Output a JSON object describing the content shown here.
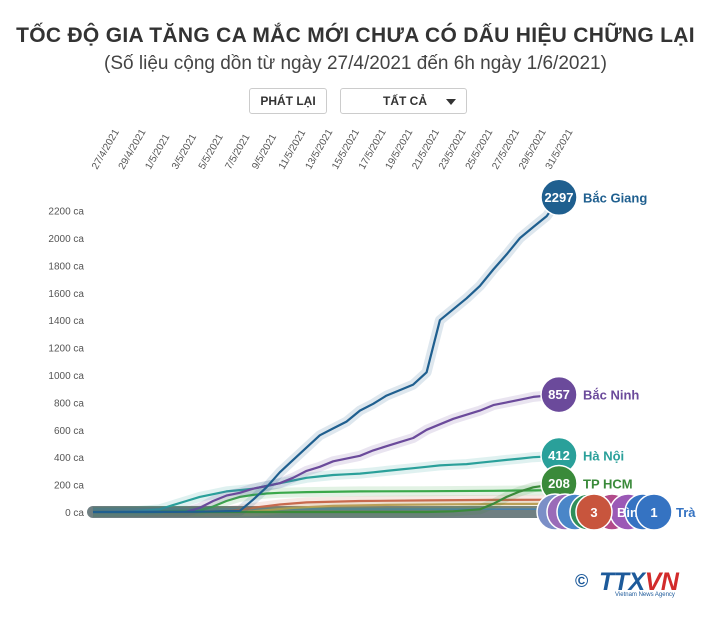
{
  "header": {
    "title": "TỐC ĐỘ GIA TĂNG CA MẮC MỚI CHƯA CÓ DẤU HIỆU CHỮNG LẠI",
    "subtitle": "(Số liệu cộng dồn từ ngày 27/4/2021 đến 6h ngày 1/6/2021)"
  },
  "controls": {
    "replay_label": "PHÁT LẠI",
    "filter_value": "TẤT CẢ"
  },
  "logo": {
    "copyright": "©",
    "brand_a": "TTX",
    "brand_b": "VN",
    "tagline": "Vietnam News Agency"
  },
  "chart_data": {
    "type": "line",
    "title": "TỐC ĐỘ GIA TĂNG CA MẮC MỚI CHƯA CÓ DẤU HIỆU CHỮNG LẠI",
    "subtitle": "(Số liệu cộng dồn từ ngày 27/4/2021 đến 6h ngày 1/6/2021)",
    "x_tick_labels": [
      "27/4/2021",
      "29/4/2021",
      "1/5/2021",
      "3/5/2021",
      "5/5/2021",
      "7/5/2021",
      "9/5/2021",
      "11/5/2021",
      "13/5/2021",
      "15/5/2021",
      "17/5/2021",
      "19/5/2021",
      "21/5/2021",
      "23/5/2021",
      "25/5/2021",
      "27/5/2021",
      "29/5/2021",
      "31/5/2021"
    ],
    "y_ticks": [
      0,
      200,
      400,
      600,
      800,
      1000,
      1200,
      1400,
      1600,
      1800,
      2000,
      2200
    ],
    "y_tick_suffix": " ca",
    "ylim": [
      0,
      2297
    ],
    "grid": false,
    "series": [
      {
        "name": "Bắc Giang",
        "end_value": 2297,
        "color": "#1f5f8f",
        "points": [
          [
            0,
            0
          ],
          [
            4,
            0
          ],
          [
            8,
            2
          ],
          [
            11,
            8
          ],
          [
            12,
            90
          ],
          [
            13,
            180
          ],
          [
            14,
            290
          ],
          [
            15,
            380
          ],
          [
            16,
            470
          ],
          [
            17,
            560
          ],
          [
            18,
            610
          ],
          [
            19,
            660
          ],
          [
            20,
            740
          ],
          [
            21,
            790
          ],
          [
            22,
            850
          ],
          [
            23,
            890
          ],
          [
            24,
            930
          ],
          [
            25,
            1020
          ],
          [
            26,
            1400
          ],
          [
            27,
            1480
          ],
          [
            28,
            1560
          ],
          [
            29,
            1650
          ],
          [
            30,
            1770
          ],
          [
            31,
            1880
          ],
          [
            32,
            2000
          ],
          [
            33,
            2080
          ],
          [
            34,
            2160
          ],
          [
            35,
            2297
          ]
        ]
      },
      {
        "name": "Bắc Ninh",
        "end_value": 857,
        "color": "#6b4a9b",
        "points": [
          [
            0,
            0
          ],
          [
            7,
            2
          ],
          [
            8,
            30
          ],
          [
            9,
            80
          ],
          [
            10,
            120
          ],
          [
            11,
            140
          ],
          [
            12,
            170
          ],
          [
            13,
            190
          ],
          [
            14,
            210
          ],
          [
            15,
            250
          ],
          [
            16,
            300
          ],
          [
            17,
            330
          ],
          [
            18,
            370
          ],
          [
            19,
            390
          ],
          [
            20,
            410
          ],
          [
            21,
            450
          ],
          [
            22,
            480
          ],
          [
            23,
            510
          ],
          [
            24,
            540
          ],
          [
            25,
            600
          ],
          [
            26,
            640
          ],
          [
            27,
            680
          ],
          [
            28,
            710
          ],
          [
            29,
            740
          ],
          [
            30,
            780
          ],
          [
            31,
            800
          ],
          [
            32,
            820
          ],
          [
            33,
            840
          ],
          [
            34,
            850
          ],
          [
            35,
            857
          ]
        ]
      },
      {
        "name": "Hà Nội",
        "end_value": 412,
        "color": "#2aa09a",
        "points": [
          [
            0,
            0
          ],
          [
            3,
            5
          ],
          [
            5,
            20
          ],
          [
            6,
            50
          ],
          [
            7,
            80
          ],
          [
            8,
            110
          ],
          [
            9,
            130
          ],
          [
            10,
            150
          ],
          [
            11,
            160
          ],
          [
            12,
            170
          ],
          [
            13,
            190
          ],
          [
            14,
            210
          ],
          [
            15,
            230
          ],
          [
            16,
            250
          ],
          [
            17,
            260
          ],
          [
            18,
            270
          ],
          [
            19,
            275
          ],
          [
            20,
            280
          ],
          [
            21,
            290
          ],
          [
            22,
            300
          ],
          [
            23,
            310
          ],
          [
            24,
            320
          ],
          [
            25,
            330
          ],
          [
            26,
            340
          ],
          [
            27,
            345
          ],
          [
            28,
            350
          ],
          [
            29,
            360
          ],
          [
            30,
            370
          ],
          [
            31,
            380
          ],
          [
            32,
            390
          ],
          [
            33,
            400
          ],
          [
            34,
            405
          ],
          [
            35,
            412
          ]
        ]
      },
      {
        "name": "TP HCM",
        "end_value": 208,
        "color": "#3a8a3a",
        "points": [
          [
            0,
            0
          ],
          [
            25,
            0
          ],
          [
            27,
            5
          ],
          [
            29,
            20
          ],
          [
            30,
            60
          ],
          [
            31,
            110
          ],
          [
            32,
            150
          ],
          [
            33,
            180
          ],
          [
            34,
            195
          ],
          [
            35,
            208
          ]
        ]
      },
      {
        "name": "",
        "end_value": 160,
        "color": "#3aa84a",
        "points": [
          [
            0,
            0
          ],
          [
            8,
            10
          ],
          [
            9,
            40
          ],
          [
            10,
            80
          ],
          [
            11,
            110
          ],
          [
            12,
            125
          ],
          [
            13,
            135
          ],
          [
            14,
            140
          ],
          [
            16,
            145
          ],
          [
            20,
            150
          ],
          [
            25,
            152
          ],
          [
            30,
            155
          ],
          [
            35,
            160
          ]
        ]
      },
      {
        "name": "",
        "end_value": 90,
        "color": "#c86a4e",
        "points": [
          [
            0,
            0
          ],
          [
            10,
            5
          ],
          [
            12,
            30
          ],
          [
            14,
            55
          ],
          [
            16,
            70
          ],
          [
            20,
            80
          ],
          [
            25,
            85
          ],
          [
            30,
            88
          ],
          [
            35,
            90
          ]
        ]
      },
      {
        "name": "",
        "end_value": 60,
        "color": "#b8a85a",
        "points": [
          [
            0,
            0
          ],
          [
            12,
            5
          ],
          [
            15,
            30
          ],
          [
            18,
            45
          ],
          [
            22,
            52
          ],
          [
            28,
            57
          ],
          [
            35,
            60
          ]
        ]
      }
    ],
    "bubble_values": [
      "3",
      "1"
    ],
    "bubble_partial_labels": [
      "Bìn",
      "Trà"
    ]
  }
}
